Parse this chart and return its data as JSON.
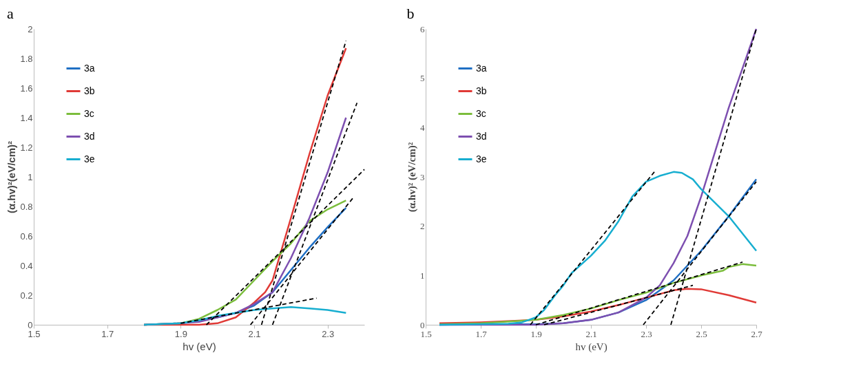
{
  "chart_data": [
    {
      "type": "line",
      "title": "a",
      "xlabel": "hv (eV)",
      "ylabel": "(α.hv)²(eV/cm)²",
      "xlim": [
        1.5,
        2.4
      ],
      "ylim": [
        0,
        2
      ],
      "xticks": [
        1.5,
        1.7,
        1.9,
        2.1,
        2.3
      ],
      "yticks": [
        0,
        0.2,
        0.4,
        0.6,
        0.8,
        1,
        1.2,
        1.4,
        1.6,
        1.8,
        2
      ],
      "grid": false,
      "legend": "top left",
      "series": [
        {
          "name": "3a",
          "color": "#1f6fc4",
          "x": [
            1.8,
            1.9,
            1.95,
            2.0,
            2.05,
            2.1,
            2.15,
            2.2,
            2.25,
            2.3,
            2.35
          ],
          "values": [
            0,
            0.01,
            0.03,
            0.05,
            0.08,
            0.13,
            0.22,
            0.37,
            0.52,
            0.66,
            0.79
          ]
        },
        {
          "name": "3b",
          "color": "#e03a36",
          "x": [
            1.8,
            1.9,
            1.95,
            2.0,
            2.05,
            2.1,
            2.13,
            2.15,
            2.2,
            2.25,
            2.3,
            2.35
          ],
          "values": [
            0,
            0,
            0,
            0.01,
            0.05,
            0.15,
            0.22,
            0.3,
            0.72,
            1.15,
            1.55,
            1.87
          ]
        },
        {
          "name": "3c",
          "color": "#7bbd3c",
          "x": [
            1.8,
            1.9,
            1.95,
            2.0,
            2.05,
            2.1,
            2.15,
            2.2,
            2.25,
            2.3,
            2.35
          ],
          "values": [
            0,
            0.01,
            0.04,
            0.1,
            0.17,
            0.3,
            0.43,
            0.55,
            0.7,
            0.78,
            0.84
          ]
        },
        {
          "name": "3d",
          "color": "#7d4fb0",
          "x": [
            1.8,
            1.9,
            1.95,
            2.0,
            2.05,
            2.1,
            2.15,
            2.2,
            2.25,
            2.3,
            2.35
          ],
          "values": [
            0,
            0.01,
            0.02,
            0.05,
            0.08,
            0.14,
            0.22,
            0.45,
            0.72,
            1.03,
            1.4
          ]
        },
        {
          "name": "3e",
          "color": "#17aed0",
          "x": [
            1.8,
            1.9,
            1.95,
            2.0,
            2.05,
            2.1,
            2.15,
            2.2,
            2.25,
            2.3,
            2.35
          ],
          "values": [
            0,
            0.01,
            0.03,
            0.06,
            0.08,
            0.1,
            0.11,
            0.12,
            0.11,
            0.1,
            0.08
          ]
        },
        {
          "type": "line",
          "color": "#000000",
          "line_style": "dashed",
          "x": [
            2.12,
            2.35
          ],
          "values": [
            0,
            1.92
          ]
        },
        {
          "type": "line",
          "color": "#000000",
          "line_style": "dashed",
          "x": [
            2.15,
            2.38
          ],
          "values": [
            0,
            1.5
          ]
        },
        {
          "type": "line",
          "color": "#000000",
          "line_style": "dashed",
          "x": [
            2.09,
            2.37
          ],
          "values": [
            0,
            0.86
          ]
        },
        {
          "type": "line",
          "color": "#000000",
          "line_style": "dashed",
          "x": [
            1.97,
            2.4
          ],
          "values": [
            0,
            1.05
          ]
        },
        {
          "type": "line",
          "color": "#000000",
          "line_style": "dashed",
          "x": [
            1.9,
            2.27
          ],
          "values": [
            0.01,
            0.18
          ]
        }
      ]
    },
    {
      "type": "line",
      "title": "b",
      "xlabel": "hv (eV)",
      "ylabel": "(α.hv)² (eV/cm)²",
      "xlim": [
        1.5,
        2.7
      ],
      "ylim": [
        0,
        6
      ],
      "xticks": [
        1.5,
        1.7,
        1.9,
        2.1,
        2.3,
        2.5,
        2.7
      ],
      "yticks": [
        0,
        1,
        2,
        3,
        4,
        5,
        6
      ],
      "grid": false,
      "legend": "top left",
      "series": [
        {
          "name": "3a",
          "color": "#1f6fc4",
          "x": [
            1.55,
            1.9,
            2.0,
            2.1,
            2.2,
            2.3,
            2.4,
            2.5,
            2.6,
            2.7
          ],
          "values": [
            0,
            0.01,
            0.03,
            0.1,
            0.25,
            0.5,
            0.9,
            1.5,
            2.2,
            2.95
          ]
        },
        {
          "name": "3b",
          "color": "#e03a36",
          "x": [
            1.55,
            1.7,
            1.9,
            2.0,
            2.1,
            2.2,
            2.3,
            2.4,
            2.45,
            2.5,
            2.6,
            2.7
          ],
          "values": [
            0.03,
            0.05,
            0.1,
            0.17,
            0.27,
            0.4,
            0.55,
            0.7,
            0.73,
            0.72,
            0.6,
            0.45
          ]
        },
        {
          "name": "3c",
          "color": "#7bbd3c",
          "x": [
            1.55,
            1.7,
            1.9,
            2.0,
            2.1,
            2.2,
            2.3,
            2.4,
            2.5,
            2.58,
            2.6,
            2.65,
            2.7
          ],
          "values": [
            0.01,
            0.03,
            0.1,
            0.2,
            0.33,
            0.5,
            0.65,
            0.85,
            1.0,
            1.1,
            1.17,
            1.23,
            1.2
          ]
        },
        {
          "name": "3d",
          "color": "#7d4fb0",
          "x": [
            1.55,
            1.9,
            2.0,
            2.1,
            2.2,
            2.3,
            2.35,
            2.4,
            2.45,
            2.5,
            2.55,
            2.6,
            2.65,
            2.7
          ],
          "values": [
            0,
            0,
            0.03,
            0.1,
            0.25,
            0.55,
            0.8,
            1.25,
            1.8,
            2.6,
            3.5,
            4.4,
            5.2,
            6.0
          ]
        },
        {
          "name": "3e",
          "color": "#17aed0",
          "x": [
            1.55,
            1.8,
            1.85,
            1.9,
            1.93,
            1.97,
            2.0,
            2.03,
            2.1,
            2.15,
            2.2,
            2.25,
            2.3,
            2.35,
            2.4,
            2.43,
            2.47,
            2.5,
            2.6,
            2.7
          ],
          "values": [
            0,
            0.02,
            0.05,
            0.15,
            0.3,
            0.6,
            0.8,
            1.05,
            1.4,
            1.7,
            2.1,
            2.6,
            2.9,
            3.02,
            3.1,
            3.08,
            2.95,
            2.75,
            2.2,
            1.5
          ]
        },
        {
          "type": "line",
          "color": "#000000",
          "line_style": "dashed",
          "x": [
            1.88,
            2.33
          ],
          "values": [
            0,
            3.1
          ]
        },
        {
          "type": "line",
          "color": "#000000",
          "line_style": "dashed",
          "x": [
            2.39,
            2.7
          ],
          "values": [
            0,
            6
          ]
        },
        {
          "type": "line",
          "color": "#000000",
          "line_style": "dashed",
          "x": [
            2.29,
            2.7
          ],
          "values": [
            0,
            2.9
          ]
        },
        {
          "type": "line",
          "color": "#000000",
          "line_style": "dashed",
          "x": [
            1.9,
            2.65
          ],
          "values": [
            0,
            1.27
          ]
        },
        {
          "type": "line",
          "color": "#000000",
          "line_style": "dashed",
          "x": [
            1.93,
            2.47
          ],
          "values": [
            0,
            0.8
          ]
        }
      ]
    }
  ]
}
